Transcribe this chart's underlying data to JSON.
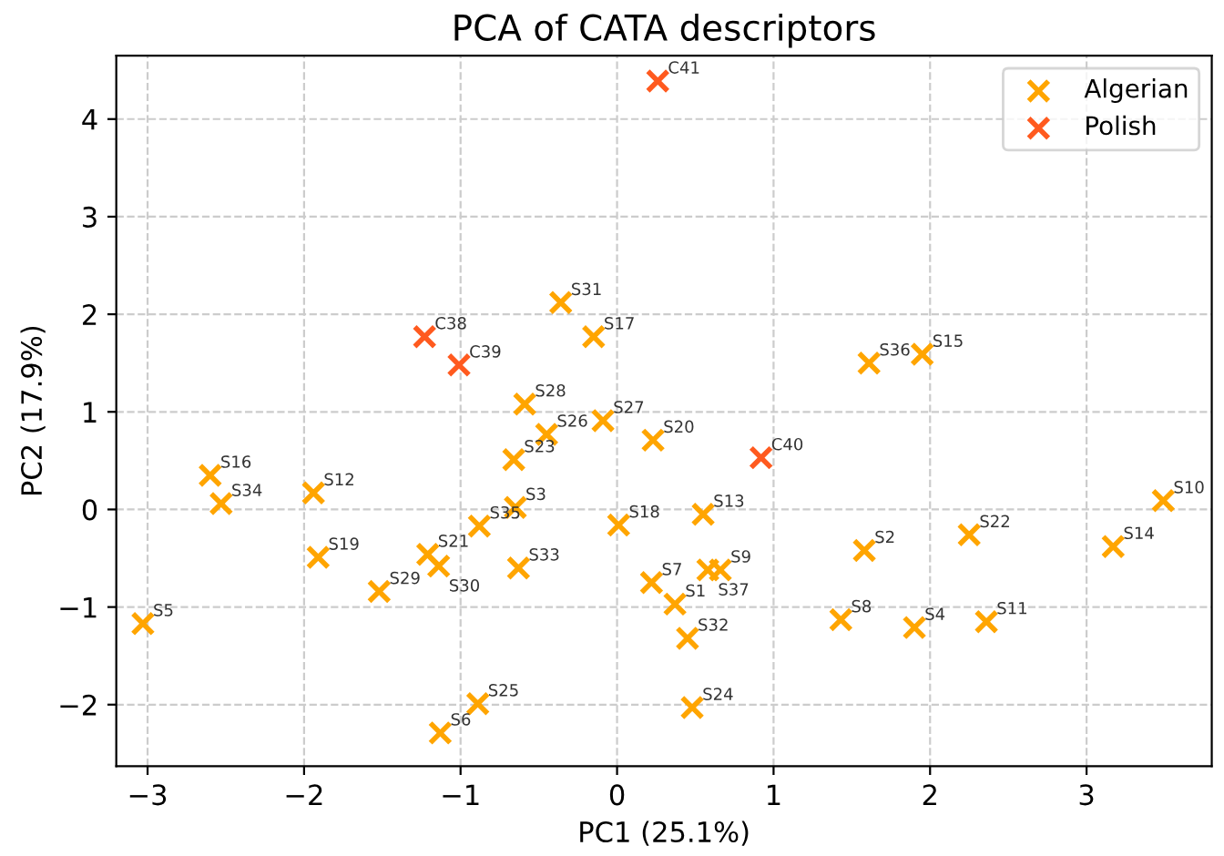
{
  "chart_data": {
    "type": "scatter",
    "title": "PCA of CATA descriptors",
    "xlabel": "PC1 (25.1%)",
    "ylabel": "PC2 (17.9%)",
    "xlim": [
      -3.2,
      3.8
    ],
    "ylim": [
      -2.63,
      4.65
    ],
    "xticks": [
      -3,
      -2,
      -1,
      0,
      1,
      2,
      3
    ],
    "yticks": [
      -2,
      -1,
      0,
      1,
      2,
      3,
      4
    ],
    "grid": true,
    "legend": "top right",
    "marker": "cross",
    "series": [
      {
        "name": "Algerian",
        "color": "#ffa500",
        "x": [
          0.37,
          1.58,
          -0.65,
          1.9,
          -3.03,
          -1.13,
          0.22,
          1.43,
          0.66,
          3.49,
          2.36,
          -1.94,
          0.55,
          3.17,
          1.95,
          -2.6,
          -0.15,
          0.01,
          -1.91,
          0.23,
          -1.21,
          2.25,
          -0.66,
          0.48,
          -0.89,
          -0.45,
          -0.09,
          -0.59,
          -1.52,
          -1.14,
          -0.36,
          0.45,
          -0.63,
          -2.53,
          -0.88,
          1.61,
          0.58
        ],
        "values": [
          -0.97,
          -0.42,
          0.02,
          -1.21,
          -1.17,
          -2.29,
          -0.75,
          -1.13,
          -0.62,
          0.09,
          -1.15,
          0.17,
          -0.05,
          -0.38,
          1.59,
          0.35,
          1.77,
          -0.16,
          -0.49,
          0.71,
          -0.46,
          -0.26,
          0.51,
          -2.03,
          -1.99,
          0.77,
          0.91,
          1.08,
          -0.84,
          -0.58,
          2.12,
          -1.32,
          -0.6,
          0.06,
          -0.17,
          1.5,
          -0.62
        ]
      },
      {
        "name": "Polish",
        "color": "#ff5a1f",
        "x": [
          -1.23,
          -1.01,
          0.92,
          0.26
        ],
        "values": [
          1.77,
          1.48,
          0.53,
          4.39
        ]
      }
    ],
    "annotations": [
      {
        "text": "S1",
        "x": 0.37,
        "y": -0.97
      },
      {
        "text": "S2",
        "x": 1.58,
        "y": -0.42
      },
      {
        "text": "S3",
        "x": -0.65,
        "y": 0.02
      },
      {
        "text": "S4",
        "x": 1.9,
        "y": -1.21
      },
      {
        "text": "S5",
        "x": -3.03,
        "y": -1.17
      },
      {
        "text": "S6",
        "x": -1.13,
        "y": -2.29
      },
      {
        "text": "S7",
        "x": 0.22,
        "y": -0.75
      },
      {
        "text": "S8",
        "x": 1.43,
        "y": -1.13
      },
      {
        "text": "S9",
        "x": 0.66,
        "y": -0.62
      },
      {
        "text": "S10",
        "x": 3.49,
        "y": 0.09
      },
      {
        "text": "S11",
        "x": 2.36,
        "y": -1.15
      },
      {
        "text": "S12",
        "x": -1.94,
        "y": 0.17
      },
      {
        "text": "S13",
        "x": 0.55,
        "y": -0.05
      },
      {
        "text": "S14",
        "x": 3.17,
        "y": -0.38
      },
      {
        "text": "S15",
        "x": 1.95,
        "y": 1.59
      },
      {
        "text": "S16",
        "x": -2.6,
        "y": 0.35
      },
      {
        "text": "S17",
        "x": -0.15,
        "y": 1.77
      },
      {
        "text": "S18",
        "x": 0.01,
        "y": -0.16
      },
      {
        "text": "S19",
        "x": -1.91,
        "y": -0.49
      },
      {
        "text": "S20",
        "x": 0.23,
        "y": 0.71
      },
      {
        "text": "S21",
        "x": -1.21,
        "y": -0.46
      },
      {
        "text": "S22",
        "x": 2.25,
        "y": -0.26
      },
      {
        "text": "S23",
        "x": -0.66,
        "y": 0.51
      },
      {
        "text": "S24",
        "x": 0.48,
        "y": -2.03
      },
      {
        "text": "S25",
        "x": -0.89,
        "y": -1.99
      },
      {
        "text": "S26",
        "x": -0.45,
        "y": 0.77
      },
      {
        "text": "S27",
        "x": -0.09,
        "y": 0.91
      },
      {
        "text": "S28",
        "x": -0.59,
        "y": 1.08
      },
      {
        "text": "S29",
        "x": -1.52,
        "y": -0.84
      },
      {
        "text": "S30",
        "x": -1.14,
        "y": -0.58
      },
      {
        "text": "S31",
        "x": -0.36,
        "y": 2.12
      },
      {
        "text": "S32",
        "x": 0.45,
        "y": -1.32
      },
      {
        "text": "S33",
        "x": -0.63,
        "y": -0.6
      },
      {
        "text": "S34",
        "x": -2.53,
        "y": 0.06
      },
      {
        "text": "S35",
        "x": -0.88,
        "y": -0.17
      },
      {
        "text": "S36",
        "x": 1.61,
        "y": 1.5
      },
      {
        "text": "S37",
        "x": 0.58,
        "y": -0.62
      },
      {
        "text": "C38",
        "x": -1.23,
        "y": 1.77
      },
      {
        "text": "C39",
        "x": -1.01,
        "y": 1.48
      },
      {
        "text": "C40",
        "x": 0.92,
        "y": 0.53
      },
      {
        "text": "C41",
        "x": 0.26,
        "y": 4.39
      }
    ]
  }
}
